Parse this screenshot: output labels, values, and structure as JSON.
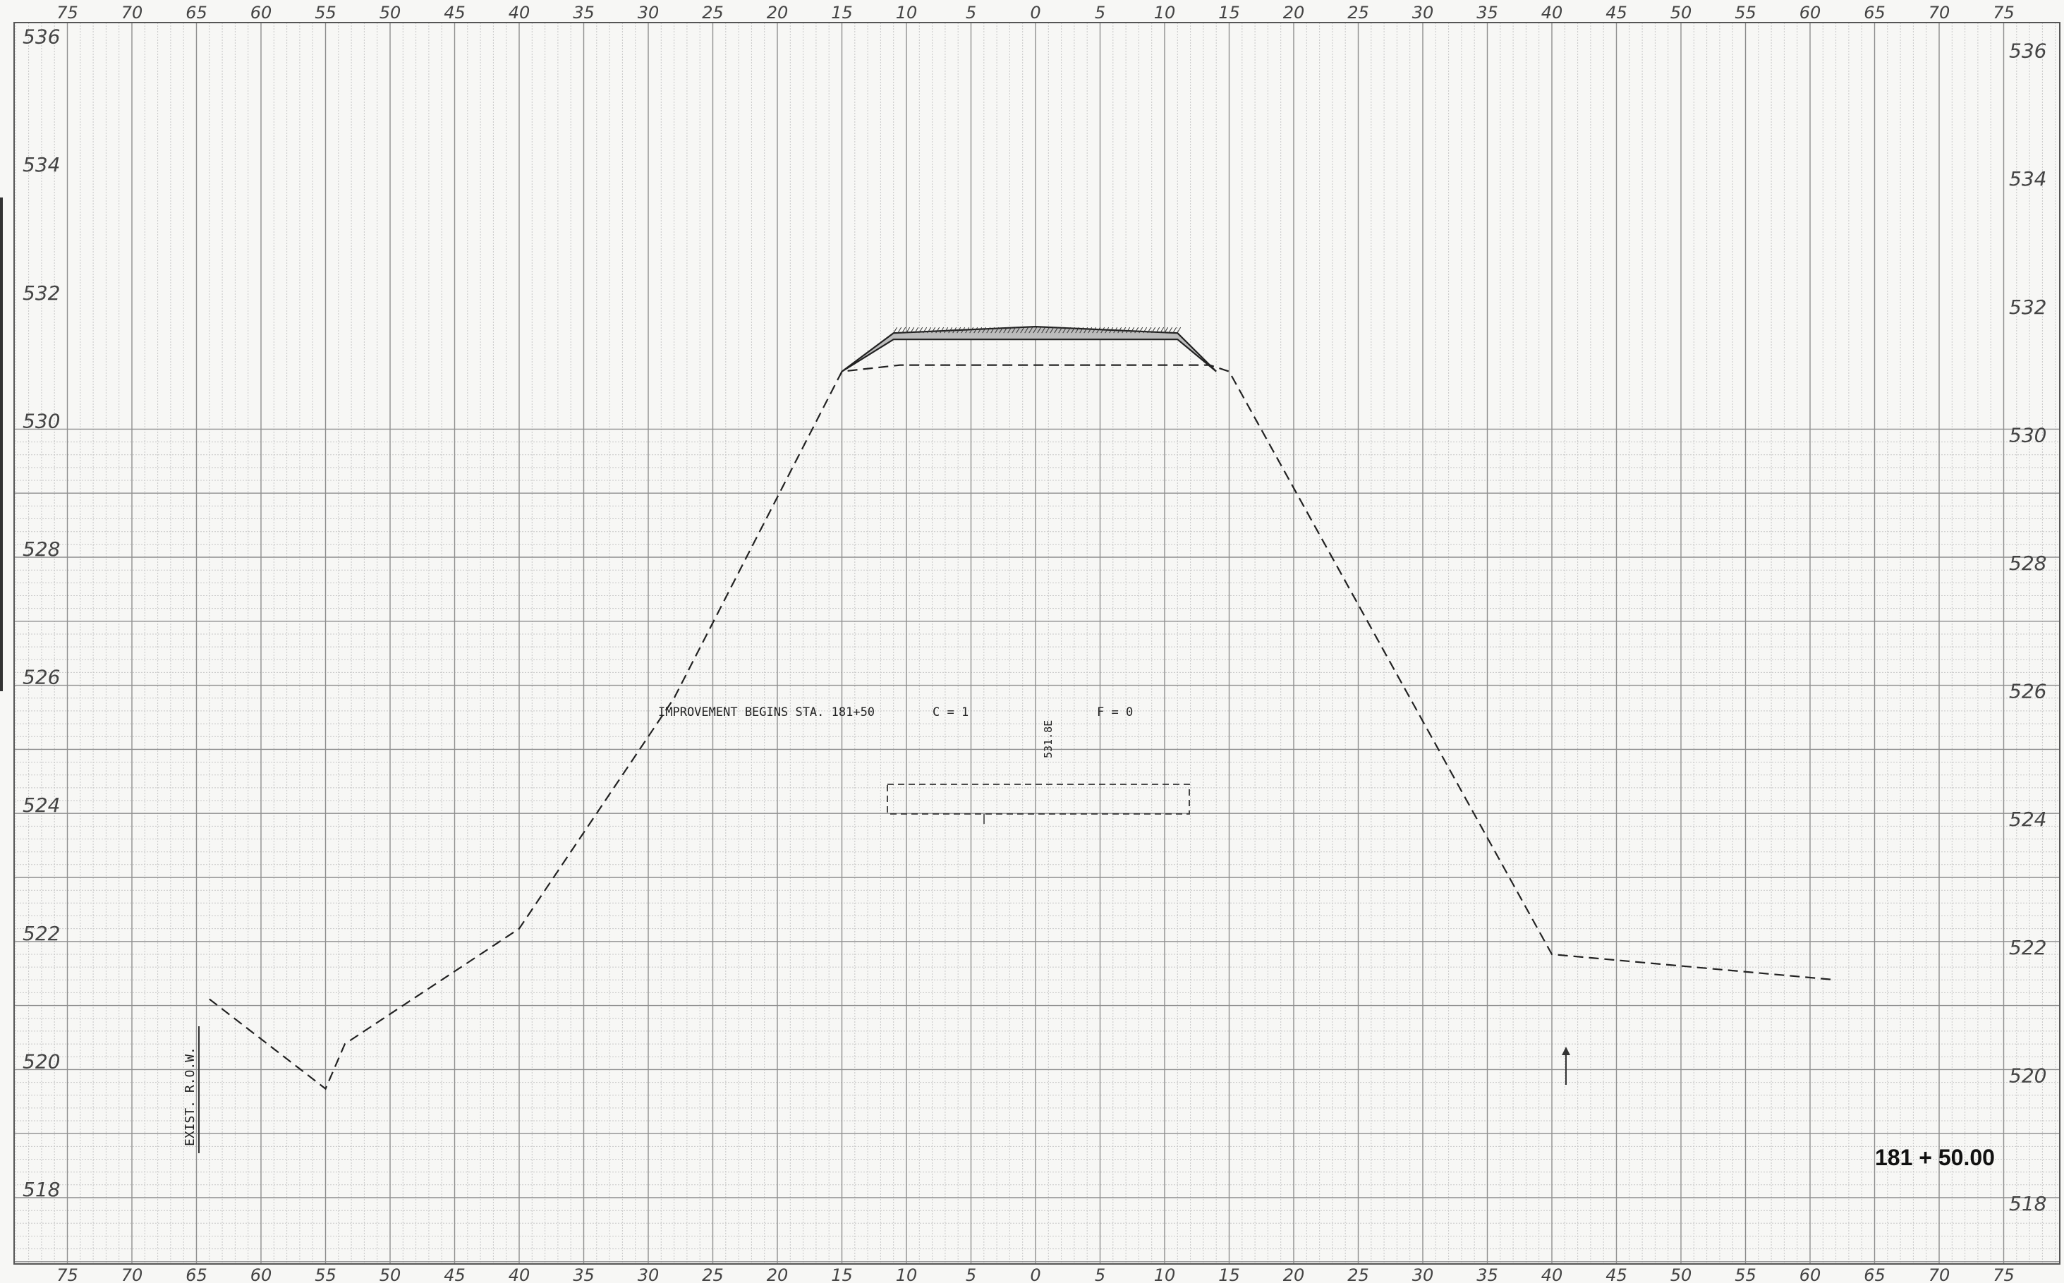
{
  "sheet": {
    "title": "181 + 50.00",
    "offset_labels_top": [
      "75",
      "70",
      "65",
      "60",
      "55",
      "50",
      "45",
      "40",
      "35",
      "30",
      "25",
      "20",
      "15",
      "10",
      "5",
      "0",
      "5",
      "10",
      "15",
      "20",
      "25",
      "30",
      "35",
      "40",
      "45",
      "50",
      "55",
      "60",
      "65",
      "70",
      "75"
    ],
    "offset_labels_bottom": [
      "75",
      "70",
      "65",
      "60",
      "55",
      "50",
      "45",
      "40",
      "35",
      "30",
      "25",
      "20",
      "15",
      "10",
      "5",
      "0",
      "5",
      "10",
      "15",
      "20",
      "25",
      "30",
      "35",
      "40",
      "45",
      "50",
      "55",
      "60",
      "65",
      "70",
      "75"
    ],
    "elevation_labels_left": [
      "536",
      "534",
      "532",
      "530",
      "528",
      "526",
      "524",
      "522",
      "520",
      "518"
    ],
    "elevation_labels_right": [
      "536",
      "534",
      "532",
      "530",
      "528",
      "526",
      "524",
      "522",
      "520",
      "518"
    ]
  },
  "annotations": {
    "improvement": "IMPROVEMENT BEGINS STA. 181+50",
    "cut": "C = 1",
    "fill": "F = 0",
    "grade_elevation": "531.8E",
    "row_label": "EXIST. R.O.W."
  },
  "profile": {
    "existing_ground": [
      {
        "offset": -64,
        "elev": 521.1
      },
      {
        "offset": -55,
        "elev": 519.7
      },
      {
        "offset": -53.5,
        "elev": 520.4
      },
      {
        "offset": -40,
        "elev": 522.2
      },
      {
        "offset": -28,
        "elev": 525.8
      },
      {
        "offset": -15,
        "elev": 530.9
      },
      {
        "offset": -10.5,
        "elev": 531.0
      },
      {
        "offset": 13.5,
        "elev": 531.0
      },
      {
        "offset": 15,
        "elev": 530.9
      },
      {
        "offset": 40,
        "elev": 521.8
      },
      {
        "offset": 62,
        "elev": 521.4
      }
    ],
    "proposed_top": [
      {
        "offset": -15,
        "elev": 530.9
      },
      {
        "offset": -11,
        "elev": 531.5
      },
      {
        "offset": 0,
        "elev": 531.6
      },
      {
        "offset": 11,
        "elev": 531.5
      },
      {
        "offset": 14,
        "elev": 530.9
      }
    ]
  },
  "colors": {
    "grid_minor": "#c7c7c7",
    "grid_major": "#8e8e8e",
    "ink": "#222222"
  }
}
